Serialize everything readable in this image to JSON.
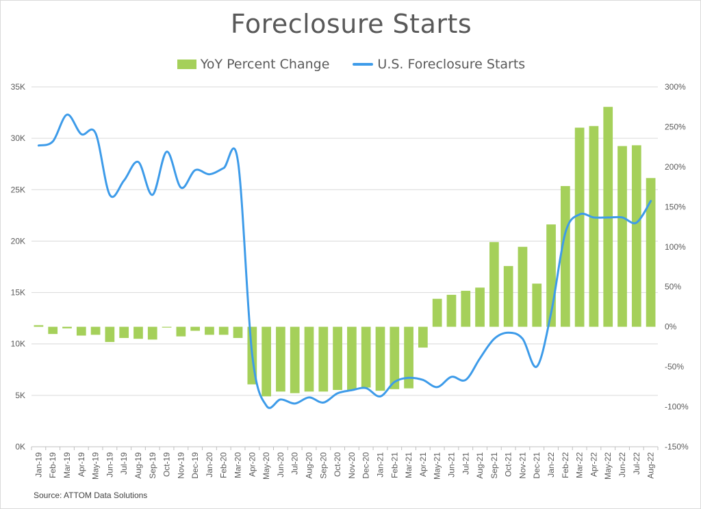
{
  "chart_data": {
    "type": "bar",
    "title": "Foreclosure Starts",
    "source": "Source: ATTOM Data Solutions",
    "legend_position": "top",
    "grid": true,
    "categories": [
      "Jan-19",
      "Feb-19",
      "Mar-19",
      "Apr-19",
      "May-19",
      "Jun-19",
      "Jul-19",
      "Aug-19",
      "Sep-19",
      "Oct-19",
      "Nov-19",
      "Dec-19",
      "Jan-20",
      "Feb-20",
      "Mar-20",
      "Apr-20",
      "May-20",
      "Jun-20",
      "Jul-20",
      "Aug-20",
      "Sep-20",
      "Oct-20",
      "Nov-20",
      "Dec-20",
      "Jan-21",
      "Feb-21",
      "Mar-21",
      "Apr-21",
      "May-21",
      "Jun-21",
      "Jul-21",
      "Aug-21",
      "Sep-21",
      "Oct-21",
      "Nov-21",
      "Dec-21",
      "Jan-22",
      "Feb-22",
      "Mar-22",
      "Apr-22",
      "May-22",
      "Jun-22",
      "Jul-22",
      "Aug-22"
    ],
    "series": [
      {
        "name": "YoY Percent Change",
        "type": "bar",
        "axis": "right",
        "color": "#a5d05a",
        "values": [
          2,
          -9,
          -2,
          -11,
          -10,
          -19,
          -14,
          -15,
          -16,
          -1,
          -12,
          -5,
          -10,
          -10,
          -14,
          -72,
          -87,
          -81,
          -83,
          -81,
          -81,
          -79,
          -79,
          -76,
          -80,
          -78,
          -77,
          -26,
          35,
          40,
          45,
          49,
          106,
          76,
          100,
          54,
          128,
          176,
          249,
          251,
          275,
          226,
          227,
          186
        ]
      },
      {
        "name": "U.S. Foreclosure Starts",
        "type": "line",
        "axis": "left",
        "color": "#3d9be9",
        "values": [
          29300,
          29700,
          32300,
          30400,
          30500,
          24500,
          25900,
          27700,
          24500,
          28700,
          25200,
          26900,
          26500,
          27100,
          27800,
          9000,
          4000,
          4600,
          4200,
          4800,
          4300,
          5200,
          5500,
          5700,
          4900,
          6300,
          6700,
          6500,
          5800,
          6800,
          6500,
          8600,
          10500,
          11100,
          10500,
          7800,
          13000,
          20800,
          22600,
          22300,
          22300,
          22300,
          21800,
          23900
        ]
      }
    ],
    "y_left": {
      "min": 0,
      "max": 35000,
      "step": 5000,
      "tick_labels": [
        "0K",
        "5K",
        "10K",
        "15K",
        "20K",
        "25K",
        "30K",
        "35K"
      ]
    },
    "y_right": {
      "min": -150,
      "max": 300,
      "step": 50,
      "tick_labels": [
        "-150%",
        "-100%",
        "-50%",
        "0%",
        "50%",
        "100%",
        "150%",
        "200%",
        "250%",
        "300%"
      ]
    },
    "colors": {
      "title": "#595959",
      "text": "#595959",
      "grid": "#d9d9d9",
      "bar": "#a5d05a",
      "line": "#3d9be9"
    }
  }
}
